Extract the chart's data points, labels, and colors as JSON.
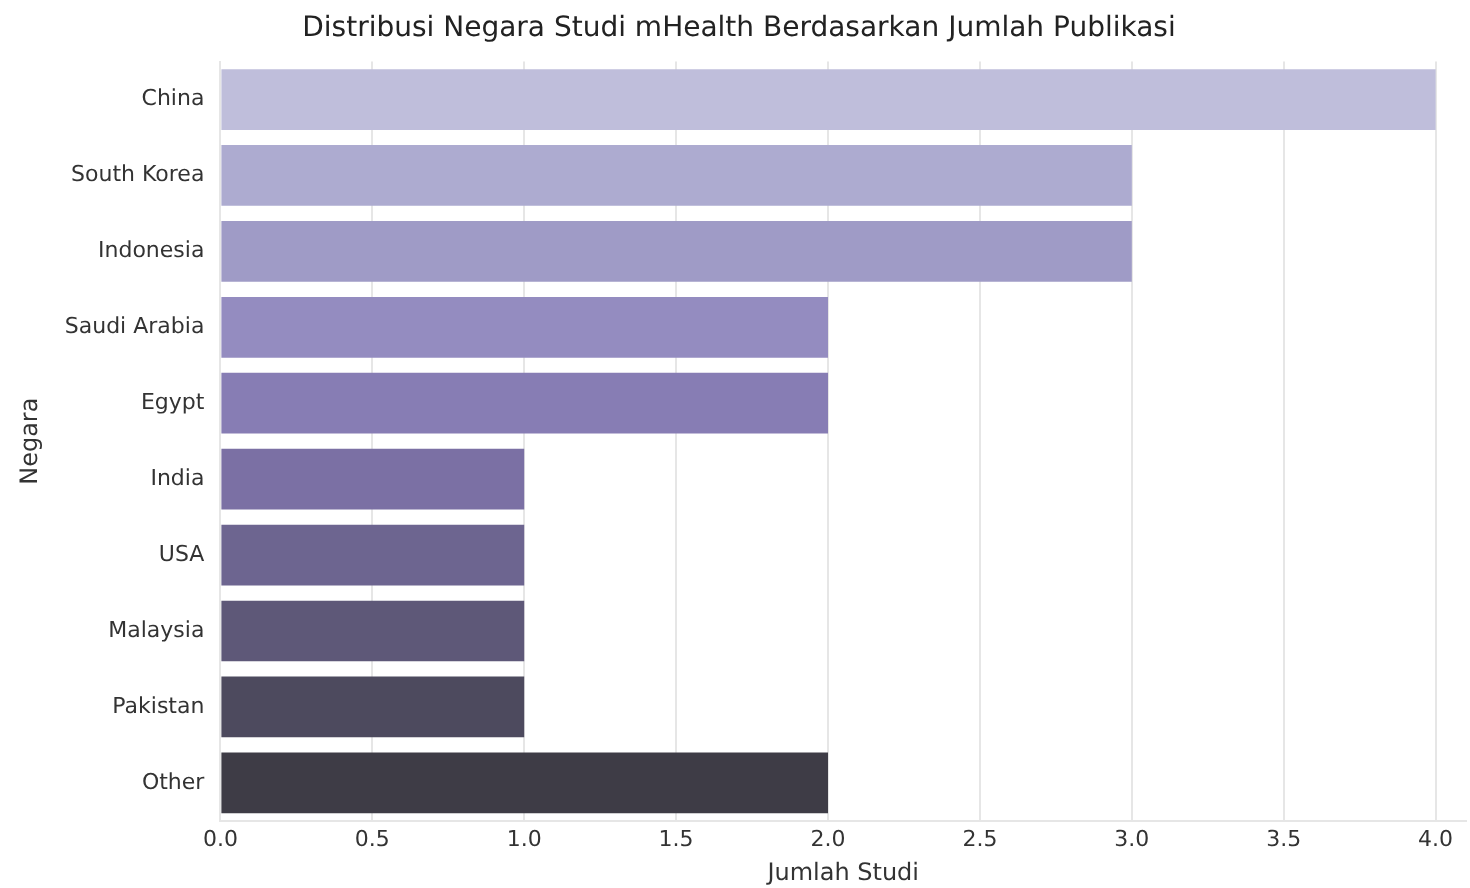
{
  "chart_data": {
    "type": "bar",
    "orientation": "horizontal",
    "title": "Distribusi Negara Studi mHealth Berdasarkan Jumlah Publikasi",
    "xlabel": "Jumlah Studi",
    "ylabel": "Negara",
    "categories": [
      "China",
      "South Korea",
      "Indonesia",
      "Saudi Arabia",
      "Egypt",
      "India",
      "USA",
      "Malaysia",
      "Pakistan",
      "Other"
    ],
    "values": [
      4,
      3,
      3,
      2,
      2,
      1,
      1,
      1,
      1,
      2
    ],
    "colors": [
      "#bfbedb",
      "#adabd0",
      "#9f9bc6",
      "#948cc0",
      "#877db4",
      "#7b70a4",
      "#6d6590",
      "#5e5878",
      "#4d4a5e",
      "#3e3c46"
    ],
    "xlim": [
      0,
      4.1
    ],
    "xticks": [
      {
        "value": 0,
        "label": "0.0"
      },
      {
        "value": 0.5,
        "label": "0.5"
      },
      {
        "value": 1,
        "label": "1.0"
      },
      {
        "value": 1.5,
        "label": "1.5"
      },
      {
        "value": 2,
        "label": "2.0"
      },
      {
        "value": 2.5,
        "label": "2.5"
      },
      {
        "value": 3,
        "label": "3.0"
      },
      {
        "value": 3.5,
        "label": "3.5"
      },
      {
        "value": 4,
        "label": "4.0"
      }
    ],
    "grid": "x",
    "legend": false
  }
}
